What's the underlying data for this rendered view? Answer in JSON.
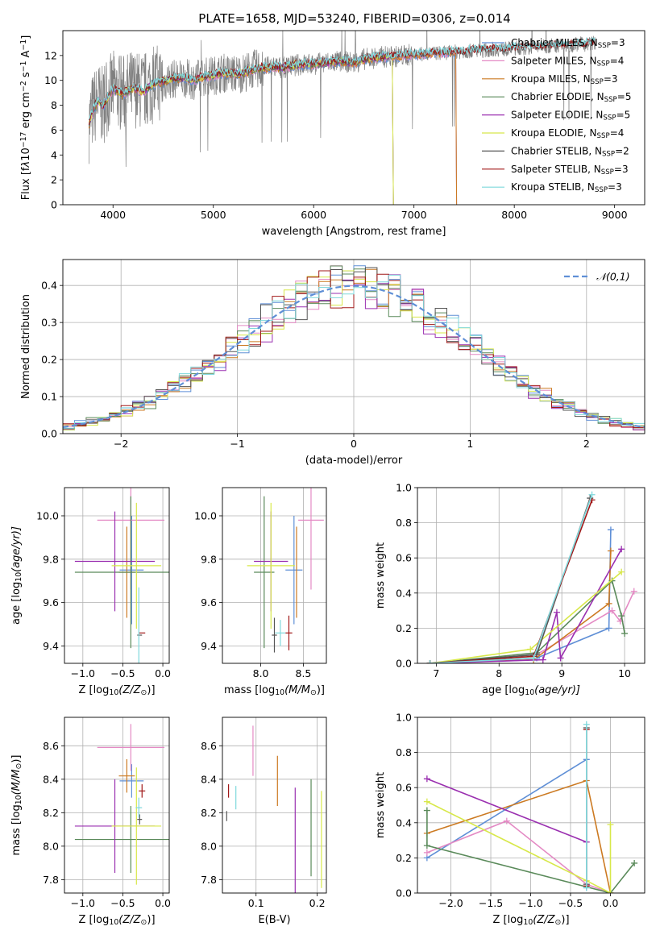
{
  "figure": {
    "title": "PLATE=1658, MJD=53240, FIBERID=0306, z=0.014"
  },
  "colors": {
    "chabrier_miles": "#5f8fd6",
    "salpeter_miles": "#e48ac4",
    "kroupa_miles": "#cc7a22",
    "chabrier_elodie": "#5a8a5a",
    "salpeter_elodie": "#9a2fb0",
    "kroupa_elodie": "#d8e84a",
    "chabrier_stelib": "#555555",
    "salpeter_stelib": "#a01818",
    "kroupa_stelib": "#7fd8dc",
    "data_gray": "#808080",
    "gaussian": "#5f8fd6",
    "grid": "#b0b0b0"
  },
  "chart_data": [
    {
      "id": "spectrum",
      "type": "line",
      "title": "PLATE=1658, MJD=53240, FIBERID=0306, z=0.014",
      "xlabel": "wavelength [Angstrom, rest frame]",
      "ylabel_parts": [
        "Flux [f",
        "λ",
        "10",
        "−17",
        " erg cm",
        "−2",
        " s",
        "−1",
        " A",
        "−1",
        "]"
      ],
      "xlim": [
        3500,
        9300
      ],
      "ylim": [
        0,
        14
      ],
      "xticks": [
        4000,
        5000,
        6000,
        7000,
        8000,
        9000
      ],
      "yticks": [
        0,
        2,
        4,
        6,
        8,
        10,
        12
      ],
      "grid": false,
      "legend_position": "upper-right",
      "legend": [
        {
          "name": "Chabrier MILES, N",
          "sub": "SSP",
          "tail": "=3",
          "color_key": "chabrier_miles"
        },
        {
          "name": "Salpeter MILES, N",
          "sub": "SSP",
          "tail": "=4",
          "color_key": "salpeter_miles"
        },
        {
          "name": "Kroupa MILES, N",
          "sub": "SSP",
          "tail": "=3",
          "color_key": "kroupa_miles"
        },
        {
          "name": "Chabrier ELODIE, N",
          "sub": "SSP",
          "tail": "=5",
          "color_key": "chabrier_elodie"
        },
        {
          "name": "Salpeter ELODIE, N",
          "sub": "SSP",
          "tail": "=5",
          "color_key": "salpeter_elodie"
        },
        {
          "name": "Kroupa ELODIE, N",
          "sub": "SSP",
          "tail": "=4",
          "color_key": "kroupa_elodie"
        },
        {
          "name": "Chabrier STELIB, N",
          "sub": "SSP",
          "tail": "=2",
          "color_key": "chabrier_stelib"
        },
        {
          "name": "Salpeter STELIB, N",
          "sub": "SSP",
          "tail": "=3",
          "color_key": "salpeter_stelib"
        },
        {
          "name": "Kroupa STELIB, N",
          "sub": "SSP",
          "tail": "=3",
          "color_key": "kroupa_stelib"
        }
      ],
      "model_x": [
        3750,
        3800,
        3850,
        3900,
        3950,
        4000,
        4100,
        4200,
        4300,
        4400,
        4500,
        4600,
        4700,
        4800,
        4900,
        5000,
        5100,
        5200,
        5300,
        5400,
        5500,
        5600,
        5700,
        5800,
        5900,
        6000,
        6100,
        6200,
        6300,
        6400,
        6500,
        6600,
        6700,
        6800,
        6900,
        7000,
        7100,
        7200,
        7300,
        7400,
        7500,
        7600,
        7700,
        7800,
        7900,
        8000,
        8100,
        8200,
        8300,
        8400,
        8500,
        8600,
        8700,
        8800,
        9000
      ],
      "model_y": [
        6.2,
        7.6,
        8.4,
        7.9,
        8.7,
        9.3,
        8.9,
        9.4,
        9.1,
        9.7,
        9.9,
        10.1,
        10.2,
        10.0,
        10.3,
        10.4,
        10.6,
        10.5,
        10.6,
        10.9,
        11.0,
        11.1,
        11.0,
        11.2,
        11.3,
        11.3,
        11.4,
        11.5,
        11.5,
        11.4,
        11.7,
        11.8,
        11.9,
        11.9,
        12.0,
        12.1,
        12.1,
        12.2,
        12.2,
        12.3,
        12.3,
        12.4,
        12.4,
        12.5,
        12.5,
        12.6,
        12.6,
        12.7,
        12.7,
        12.8,
        12.8,
        12.9,
        12.9,
        13.0,
        13.1
      ],
      "data_x_range": [
        3760,
        8810
      ]
    },
    {
      "id": "residuals",
      "type": "histogram",
      "xlabel": "(data-model)/error",
      "ylabel": "Normed distribution",
      "xlim": [
        -2.5,
        2.5
      ],
      "ylim": [
        0,
        0.47
      ],
      "xticks": [
        -2,
        -1,
        0,
        1,
        2
      ],
      "xtick_labels": [
        "−2",
        "−1",
        "0",
        "1",
        "2"
      ],
      "yticks": [
        0.0,
        0.1,
        0.2,
        0.3,
        0.4
      ],
      "ytick_labels": [
        "0.0",
        "0.1",
        "0.2",
        "0.3",
        "0.4"
      ],
      "grid": true,
      "legend_position": "upper-right",
      "legend": [
        {
          "name": "𝒩(0,1)",
          "style": "dashed",
          "color_key": "gaussian"
        }
      ],
      "bin_width": 0.1,
      "bins_from": -2.5
    },
    {
      "id": "age_vs_z",
      "type": "errorbar",
      "xlabel_parts": [
        "Z [log",
        "10",
        "(Z/Z",
        "⊙",
        ")]"
      ],
      "ylabel_parts": [
        "age  [log",
        "10",
        "(age/yr)]"
      ],
      "xlim": [
        -1.23,
        0.08
      ],
      "ylim": [
        9.32,
        10.13
      ],
      "xticks": [
        -1.0,
        -0.5,
        0.0
      ],
      "xtick_labels": [
        "−1.0",
        "−0.5",
        "0.0"
      ],
      "yticks": [
        9.4,
        9.6,
        9.8,
        10.0
      ],
      "ytick_labels": [
        "9.4",
        "9.6",
        "9.8",
        "10.0"
      ],
      "grid": true,
      "points": [
        {
          "key": "chabrier_miles",
          "x": -0.39,
          "xerr": 0.15,
          "y": 9.75,
          "yerr": 0.25
        },
        {
          "key": "salpeter_miles",
          "x": -0.4,
          "xerr": 0.42,
          "y": 9.98,
          "yerr": 0.32
        },
        {
          "key": "kroupa_miles",
          "x": -0.45,
          "xerr": 0.1,
          "y": 9.74,
          "yerr": 0.21
        },
        {
          "key": "chabrier_elodie",
          "x": -0.4,
          "xerr": 0.7,
          "y": 9.74,
          "yerr": 0.35
        },
        {
          "key": "salpeter_elodie",
          "x": -0.6,
          "xerr": 0.5,
          "y": 9.79,
          "yerr": 0.23
        },
        {
          "key": "kroupa_elodie",
          "x": -0.33,
          "xerr": 0.31,
          "y": 9.77,
          "yerr": 0.29
        },
        {
          "key": "chabrier_stelib",
          "x": -0.29,
          "xerr": 0.03,
          "y": 9.45,
          "yerr": 0.0
        },
        {
          "key": "salpeter_stelib",
          "x": -0.26,
          "xerr": 0.04,
          "y": 9.46,
          "yerr": 0.0
        },
        {
          "key": "kroupa_stelib",
          "x": -0.3,
          "xerr": 0.0,
          "y": 9.46,
          "yerr": 0.21
        }
      ]
    },
    {
      "id": "age_vs_mass",
      "type": "errorbar",
      "xlabel_parts": [
        "mass [log",
        "10",
        "(M/M",
        "⊙",
        ")]"
      ],
      "xlim": [
        7.55,
        8.77
      ],
      "ylim": [
        9.32,
        10.13
      ],
      "xticks": [
        8.0,
        8.5
      ],
      "xtick_labels": [
        "8.0",
        "8.5"
      ],
      "yticks": [
        9.4,
        9.6,
        9.8,
        10.0
      ],
      "ytick_labels": [
        "9.4",
        "9.6",
        "9.8",
        "10.0"
      ],
      "grid": true,
      "points": [
        {
          "key": "chabrier_miles",
          "x": 8.39,
          "xerr": 0.1,
          "y": 9.75,
          "yerr": 0.25
        },
        {
          "key": "salpeter_miles",
          "x": 8.59,
          "xerr": 0.15,
          "y": 9.98,
          "yerr": 0.32
        },
        {
          "key": "kroupa_miles",
          "x": 8.42,
          "xerr": 0.0,
          "y": 9.74,
          "yerr": 0.21
        },
        {
          "key": "chabrier_elodie",
          "x": 8.04,
          "xerr": 0.12,
          "y": 9.74,
          "yerr": 0.35
        },
        {
          "key": "salpeter_elodie",
          "x": 8.12,
          "xerr": 0.2,
          "y": 9.79,
          "yerr": 0.23
        },
        {
          "key": "kroupa_elodie",
          "x": 8.12,
          "xerr": 0.28,
          "y": 9.77,
          "yerr": 0.29
        },
        {
          "key": "chabrier_stelib",
          "x": 8.16,
          "xerr": 0.03,
          "y": 9.45,
          "yerr": 0.08
        },
        {
          "key": "salpeter_stelib",
          "x": 8.33,
          "xerr": 0.04,
          "y": 9.46,
          "yerr": 0.08
        },
        {
          "key": "kroupa_stelib",
          "x": 8.23,
          "xerr": 0.06,
          "y": 9.46,
          "yerr": 0.06
        }
      ]
    },
    {
      "id": "weight_vs_age",
      "type": "line",
      "xlabel_parts": [
        "age  [log",
        "10",
        "(age/yr)]"
      ],
      "ylabel": "mass weight",
      "xlim": [
        6.7,
        10.32
      ],
      "ylim": [
        0,
        1.0
      ],
      "xticks": [
        7,
        8,
        9,
        10
      ],
      "yticks": [
        0.0,
        0.2,
        0.4,
        0.6,
        0.8,
        1.0
      ],
      "ytick_labels": [
        "0.0",
        "0.2",
        "0.4",
        "0.6",
        "0.8",
        "1.0"
      ],
      "grid": true,
      "series": [
        {
          "key": "chabrier_miles",
          "x": [
            6.9,
            8.6,
            9.75,
            9.78
          ],
          "y": [
            0.0,
            0.03,
            0.2,
            0.76
          ]
        },
        {
          "key": "salpeter_miles",
          "x": [
            6.9,
            8.6,
            9.8,
            9.93,
            10.15
          ],
          "y": [
            0.0,
            0.05,
            0.3,
            0.24,
            0.41
          ]
        },
        {
          "key": "kroupa_miles",
          "x": [
            6.9,
            8.55,
            9.75,
            9.78
          ],
          "y": [
            0.0,
            0.02,
            0.34,
            0.64
          ]
        },
        {
          "key": "chabrier_elodie",
          "x": [
            6.9,
            8.6,
            9.8,
            9.95,
            10.0
          ],
          "y": [
            0.0,
            0.06,
            0.47,
            0.27,
            0.17
          ]
        },
        {
          "key": "salpeter_elodie",
          "x": [
            6.9,
            8.7,
            8.92,
            8.98,
            9.95
          ],
          "y": [
            0.0,
            0.02,
            0.29,
            0.03,
            0.65
          ]
        },
        {
          "key": "kroupa_elodie",
          "x": [
            6.9,
            8.5,
            9.95
          ],
          "y": [
            0.0,
            0.08,
            0.52
          ]
        },
        {
          "key": "chabrier_stelib",
          "x": [
            6.9,
            8.6,
            9.45
          ],
          "y": [
            0.0,
            0.05,
            0.94
          ]
        },
        {
          "key": "salpeter_stelib",
          "x": [
            6.9,
            8.55,
            9.48
          ],
          "y": [
            0.0,
            0.04,
            0.93
          ]
        },
        {
          "key": "kroupa_stelib",
          "x": [
            6.9,
            8.55,
            9.48
          ],
          "y": [
            0.0,
            0.03,
            0.96
          ]
        }
      ]
    },
    {
      "id": "mass_vs_z",
      "type": "errorbar",
      "xlabel_parts": [
        "Z [log",
        "10",
        "(Z/Z",
        "⊙",
        ")]"
      ],
      "ylabel_parts": [
        "mass [log",
        "10",
        "(M/M",
        "⊙",
        ")]"
      ],
      "xlim": [
        -1.23,
        0.08
      ],
      "ylim": [
        7.72,
        8.77
      ],
      "xticks": [
        -1.0,
        -0.5,
        0.0
      ],
      "xtick_labels": [
        "−1.0",
        "−0.5",
        "0.0"
      ],
      "yticks": [
        7.8,
        8.0,
        8.2,
        8.4,
        8.6
      ],
      "ytick_labels": [
        "7.8",
        "8.0",
        "8.2",
        "8.4",
        "8.6"
      ],
      "grid": true,
      "points": [
        {
          "key": "chabrier_miles",
          "x": -0.39,
          "xerr": 0.15,
          "y": 8.39,
          "yerr": 0.1
        },
        {
          "key": "salpeter_miles",
          "x": -0.4,
          "xerr": 0.42,
          "y": 8.59,
          "yerr": 0.14
        },
        {
          "key": "kroupa_miles",
          "x": -0.45,
          "xerr": 0.1,
          "y": 8.42,
          "yerr": 0.1
        },
        {
          "key": "chabrier_elodie",
          "x": -0.4,
          "xerr": 0.7,
          "y": 8.04,
          "yerr": 0.2
        },
        {
          "key": "salpeter_elodie",
          "x": -0.6,
          "xerr": 0.5,
          "y": 8.12,
          "yerr": 0.28
        },
        {
          "key": "kroupa_elodie",
          "x": -0.33,
          "xerr": 0.31,
          "y": 8.12,
          "yerr": 0.35
        },
        {
          "key": "chabrier_stelib",
          "x": -0.29,
          "xerr": 0.03,
          "y": 8.16,
          "yerr": 0.03
        },
        {
          "key": "salpeter_stelib",
          "x": -0.26,
          "xerr": 0.04,
          "y": 8.33,
          "yerr": 0.04
        },
        {
          "key": "kroupa_stelib",
          "x": -0.3,
          "xerr": 0.04,
          "y": 8.23,
          "yerr": 0.06
        }
      ]
    },
    {
      "id": "mass_vs_ebv",
      "type": "errorbar",
      "xlabel": "E(B-V)",
      "xlim": [
        0.045,
        0.215
      ],
      "ylim": [
        7.72,
        8.77
      ],
      "xticks": [
        0.1,
        0.2
      ],
      "xtick_labels": [
        "0.1",
        "0.2"
      ],
      "yticks": [
        7.8,
        8.0,
        8.2,
        8.4,
        8.6
      ],
      "ytick_labels": [
        "7.8",
        "8.0",
        "8.2",
        "8.4",
        "8.6"
      ],
      "grid": true,
      "points": [
        {
          "key": "salpeter_miles",
          "x": 0.095,
          "xerr": 0.0,
          "y": 8.57,
          "yerr": 0.15
        },
        {
          "key": "kroupa_miles",
          "x": 0.135,
          "xerr": 0.0,
          "y": 8.39,
          "yerr": 0.15
        },
        {
          "key": "chabrier_elodie",
          "x": 0.19,
          "xerr": 0.0,
          "y": 8.11,
          "yerr": 0.29
        },
        {
          "key": "salpeter_elodie",
          "x": 0.164,
          "xerr": 0.0,
          "y": 8.02,
          "yerr": 0.33
        },
        {
          "key": "kroupa_elodie",
          "x": 0.207,
          "xerr": 0.0,
          "y": 8.04,
          "yerr": 0.29
        },
        {
          "key": "chabrier_stelib",
          "x": 0.052,
          "xerr": 0.0,
          "y": 8.18,
          "yerr": 0.03
        },
        {
          "key": "salpeter_stelib",
          "x": 0.055,
          "xerr": 0.0,
          "y": 8.33,
          "yerr": 0.04
        },
        {
          "key": "kroupa_stelib",
          "x": 0.067,
          "xerr": 0.0,
          "y": 8.29,
          "yerr": 0.07
        }
      ]
    },
    {
      "id": "weight_vs_z",
      "type": "line",
      "xlabel_parts": [
        "Z [log",
        "10",
        "(Z/Z",
        "⊙",
        ")]"
      ],
      "ylabel": "mass weight",
      "xlim": [
        -2.42,
        0.43
      ],
      "ylim": [
        0,
        1.0
      ],
      "xticks": [
        -2.0,
        -1.5,
        -1.0,
        -0.5,
        0.0
      ],
      "xtick_labels": [
        "−2.0",
        "−1.5",
        "−1.0",
        "−0.5",
        "0.0"
      ],
      "yticks": [
        0.0,
        0.2,
        0.4,
        0.6,
        0.8,
        1.0
      ],
      "ytick_labels": [
        "0.0",
        "0.2",
        "0.4",
        "0.6",
        "0.8",
        "1.0"
      ],
      "grid": true,
      "series": [
        {
          "key": "chabrier_miles",
          "x": [
            -2.3,
            -0.3,
            -0.3
          ],
          "y": [
            0.2,
            0.76,
            0.03
          ]
        },
        {
          "key": "salpeter_miles",
          "x": [
            -2.3,
            -1.3,
            -0.3,
            0.0
          ],
          "y": [
            0.23,
            0.41,
            0.05,
            0.0
          ]
        },
        {
          "key": "kroupa_miles",
          "x": [
            -2.3,
            -0.3,
            0.0
          ],
          "y": [
            0.34,
            0.64,
            0.0
          ]
        },
        {
          "key": "chabrier_elodie",
          "x": [
            -2.3,
            -2.3,
            0.0,
            0.3
          ],
          "y": [
            0.47,
            0.27,
            0.0,
            0.17
          ]
        },
        {
          "key": "salpeter_elodie",
          "x": [
            -2.3,
            -0.3
          ],
          "y": [
            0.65,
            0.29
          ]
        },
        {
          "key": "kroupa_elodie",
          "x": [
            -2.3,
            -0.3,
            0.0,
            0.0
          ],
          "y": [
            0.52,
            0.07,
            0.0,
            0.39
          ]
        },
        {
          "key": "chabrier_stelib",
          "x": [
            -0.3,
            -0.3
          ],
          "y": [
            0.05,
            0.94
          ]
        },
        {
          "key": "salpeter_stelib",
          "x": [
            -0.3,
            -0.3
          ],
          "y": [
            0.04,
            0.93
          ]
        },
        {
          "key": "kroupa_stelib",
          "x": [
            -0.3,
            -0.3
          ],
          "y": [
            0.03,
            0.96
          ]
        }
      ]
    }
  ]
}
